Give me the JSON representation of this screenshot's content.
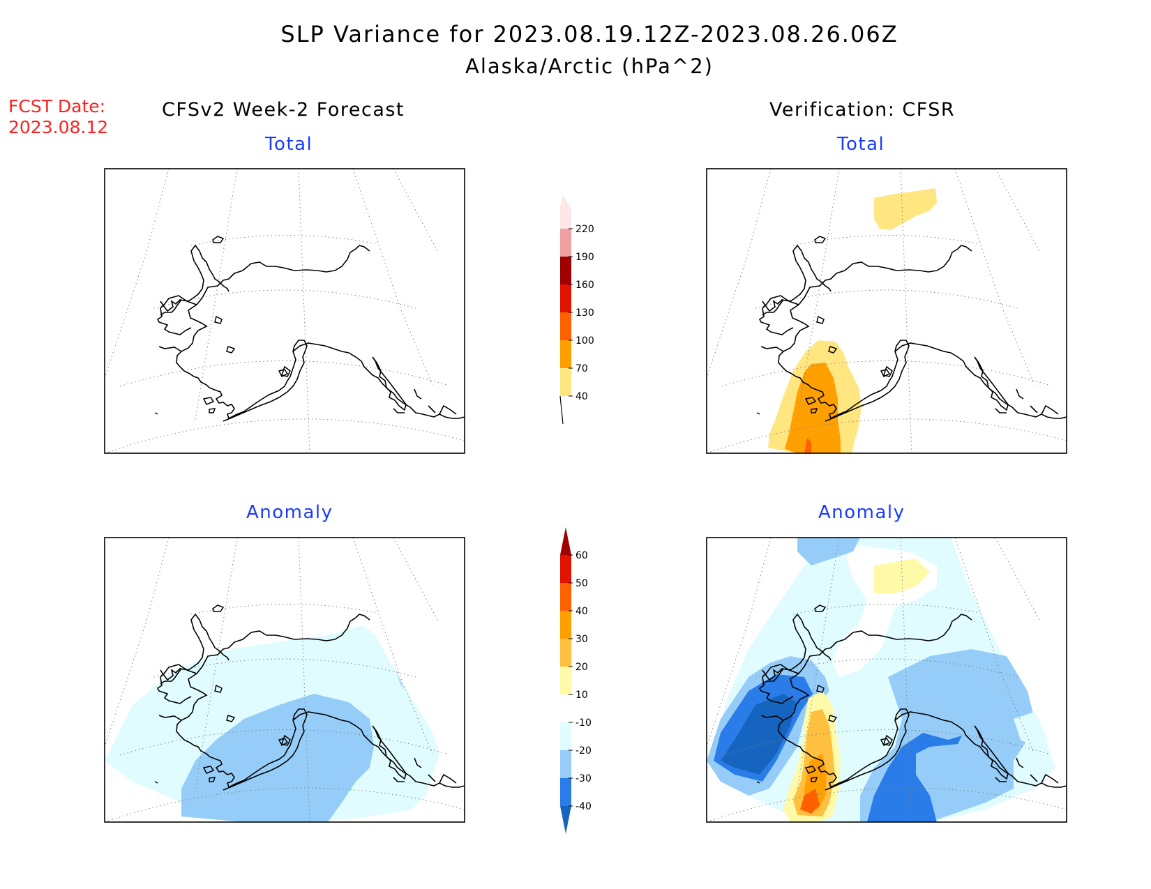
{
  "title": {
    "line1": "SLP Variance for 2023.08.19.12Z-2023.08.26.06Z",
    "line2": "Alaska/Arctic (hPa^2)"
  },
  "forecast_date": {
    "label": "FCST Date:",
    "value": "2023.08.12"
  },
  "columns": {
    "left": "CFSv2 Week-2 Forecast",
    "right": "Verification: CFSR"
  },
  "panels": {
    "fcst_total": "Total",
    "fcst_anom": "Anomaly",
    "verif_total": "Total",
    "verif_anom": "Anomaly"
  },
  "colorbars": {
    "total": {
      "labels": [
        "40",
        "70",
        "100",
        "130",
        "160",
        "190",
        "220"
      ],
      "colors": [
        "#ffe680",
        "#ffa000",
        "#ff6000",
        "#e01400",
        "#a00000",
        "#f0a0a0",
        "#fde6e6"
      ]
    },
    "anomaly": {
      "labels": [
        "-40",
        "-30",
        "-20",
        "-10",
        "10",
        "20",
        "30",
        "40",
        "50",
        "60"
      ],
      "colors": [
        "#1565c0",
        "#2a7de8",
        "#96cdf8",
        "#e0fcff",
        "#ffffff",
        "#fffaa8",
        "#ffc040",
        "#ffa000",
        "#ff6000",
        "#e01400",
        "#a00000"
      ]
    }
  }
}
